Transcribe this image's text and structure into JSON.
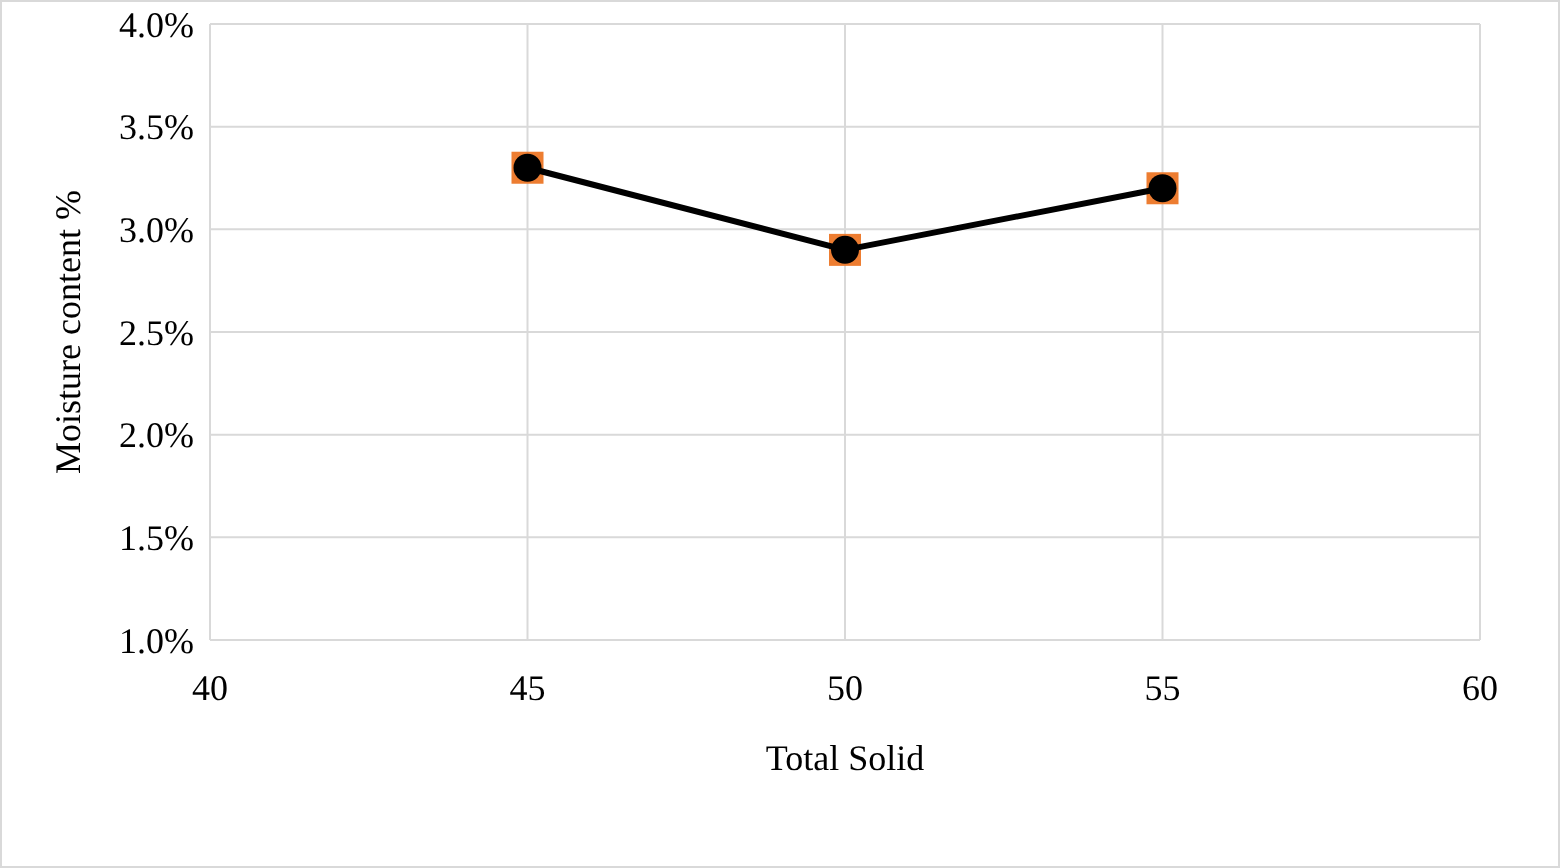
{
  "chart_data": {
    "type": "line",
    "xlabel": "Total Solid",
    "ylabel": "Moisture content %",
    "x": [
      45,
      50,
      55
    ],
    "series": [
      {
        "type": "scatter",
        "color": "#ed7d31",
        "marker": "square",
        "values": [
          3.3,
          2.9,
          3.2
        ]
      },
      {
        "color": "#000000",
        "marker": "circle",
        "line_style": "solid",
        "values": [
          3.3,
          2.9,
          3.2
        ]
      }
    ],
    "xlim": [
      40,
      60
    ],
    "xticks": [
      40,
      45,
      50,
      55,
      60
    ],
    "ylim": [
      1,
      4
    ],
    "yticks": [
      {
        "value": 1,
        "label": "1.0%"
      },
      {
        "value": 1.5,
        "label": "1.5%"
      },
      {
        "value": 2,
        "label": "2.0%"
      },
      {
        "value": 2.5,
        "label": "2.5%"
      },
      {
        "value": 3,
        "label": "3.0%"
      },
      {
        "value": 3.5,
        "label": "3.5%"
      },
      {
        "value": 4,
        "label": "4.0%"
      }
    ],
    "grid": true
  }
}
